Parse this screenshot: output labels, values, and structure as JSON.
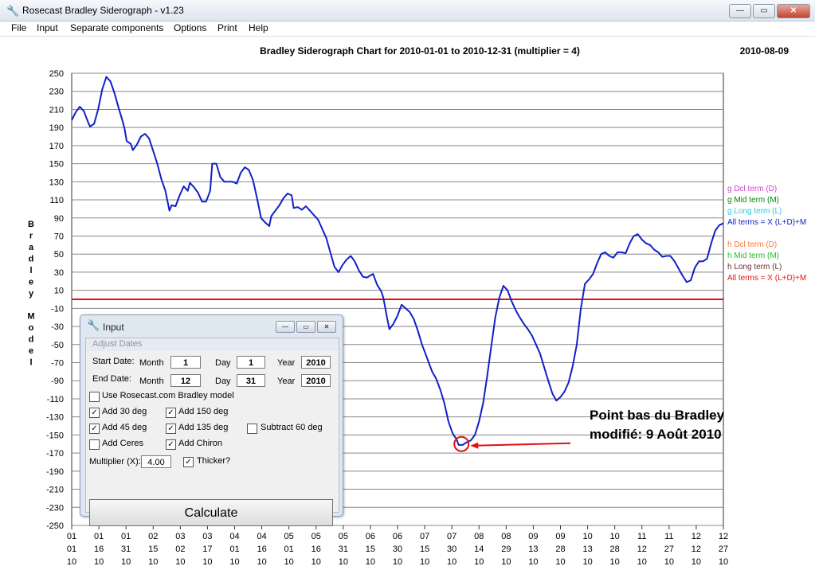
{
  "window": {
    "title": "Rosecast Bradley Siderograph - v1.23",
    "date": "2010-08-09"
  },
  "menu": [
    "File",
    "Input",
    "Separate components",
    "Options",
    "Print",
    "Help"
  ],
  "chart_data": {
    "type": "line",
    "title": "Bradley Siderograph Chart for 2010-01-01 to 2010-12-31 (multiplier = 4)",
    "ylabel": "Bradley Model",
    "ylim": [
      -250,
      250
    ],
    "yticks": [
      250,
      230,
      210,
      190,
      170,
      150,
      130,
      110,
      90,
      70,
      50,
      30,
      10,
      -10,
      -30,
      -50,
      -70,
      -90,
      -110,
      -130,
      -150,
      -170,
      -190,
      -210,
      -230,
      -250
    ],
    "xticks": [
      [
        "01",
        "01",
        "10"
      ],
      [
        "01",
        "16",
        "10"
      ],
      [
        "01",
        "31",
        "10"
      ],
      [
        "02",
        "15",
        "10"
      ],
      [
        "03",
        "02",
        "10"
      ],
      [
        "03",
        "17",
        "10"
      ],
      [
        "04",
        "01",
        "10"
      ],
      [
        "04",
        "16",
        "10"
      ],
      [
        "05",
        "01",
        "10"
      ],
      [
        "05",
        "16",
        "10"
      ],
      [
        "05",
        "31",
        "10"
      ],
      [
        "06",
        "15",
        "10"
      ],
      [
        "06",
        "30",
        "10"
      ],
      [
        "07",
        "15",
        "10"
      ],
      [
        "07",
        "30",
        "10"
      ],
      [
        "08",
        "14",
        "10"
      ],
      [
        "08",
        "29",
        "10"
      ],
      [
        "09",
        "13",
        "10"
      ],
      [
        "09",
        "28",
        "10"
      ],
      [
        "10",
        "13",
        "10"
      ],
      [
        "10",
        "28",
        "10"
      ],
      [
        "11",
        "12",
        "10"
      ],
      [
        "11",
        "27",
        "10"
      ],
      [
        "12",
        "12",
        "10"
      ],
      [
        "12",
        "27",
        "10"
      ]
    ],
    "reference_line": 0,
    "series": [
      {
        "color": "#1020c8",
        "points": [
          [
            0,
            198
          ],
          [
            2,
            207
          ],
          [
            4,
            213
          ],
          [
            6,
            208
          ],
          [
            8,
            196
          ],
          [
            9,
            191
          ],
          [
            11,
            194
          ],
          [
            13,
            210
          ],
          [
            15,
            232
          ],
          [
            17,
            246
          ],
          [
            19,
            241
          ],
          [
            21,
            228
          ],
          [
            23,
            212
          ],
          [
            25,
            197
          ],
          [
            26,
            188
          ],
          [
            27,
            175
          ],
          [
            29,
            172
          ],
          [
            30,
            165
          ],
          [
            32,
            171
          ],
          [
            34,
            180
          ],
          [
            36,
            183
          ],
          [
            38,
            178
          ],
          [
            40,
            164
          ],
          [
            42,
            150
          ],
          [
            44,
            133
          ],
          [
            46,
            120
          ],
          [
            48,
            98
          ],
          [
            49,
            104
          ],
          [
            51,
            103
          ],
          [
            53,
            115
          ],
          [
            55,
            125
          ],
          [
            57,
            120
          ],
          [
            58,
            129
          ],
          [
            60,
            124
          ],
          [
            62,
            118
          ],
          [
            64,
            108
          ],
          [
            66,
            108
          ],
          [
            68,
            120
          ],
          [
            69,
            150
          ],
          [
            71,
            150
          ],
          [
            73,
            135
          ],
          [
            75,
            130
          ],
          [
            77,
            130
          ],
          [
            79,
            130
          ],
          [
            81,
            128
          ],
          [
            83,
            140
          ],
          [
            85,
            146
          ],
          [
            87,
            143
          ],
          [
            89,
            132
          ],
          [
            91,
            112
          ],
          [
            93,
            90
          ],
          [
            95,
            85
          ],
          [
            97,
            81
          ],
          [
            98,
            92
          ],
          [
            100,
            98
          ],
          [
            102,
            104
          ],
          [
            104,
            112
          ],
          [
            106,
            117
          ],
          [
            108,
            115
          ],
          [
            109,
            101
          ],
          [
            111,
            102
          ],
          [
            113,
            99
          ],
          [
            115,
            103
          ],
          [
            117,
            98
          ],
          [
            119,
            93
          ],
          [
            121,
            88
          ],
          [
            123,
            78
          ],
          [
            125,
            68
          ],
          [
            127,
            52
          ],
          [
            129,
            36
          ],
          [
            131,
            30
          ],
          [
            133,
            38
          ],
          [
            135,
            44
          ],
          [
            137,
            48
          ],
          [
            139,
            42
          ],
          [
            141,
            32
          ],
          [
            143,
            25
          ],
          [
            145,
            24
          ],
          [
            147,
            27
          ],
          [
            148,
            28
          ],
          [
            150,
            16
          ],
          [
            152,
            9
          ],
          [
            153,
            2
          ],
          [
            154,
            -10
          ],
          [
            155,
            -22
          ],
          [
            156,
            -33
          ],
          [
            158,
            -27
          ],
          [
            160,
            -18
          ],
          [
            162,
            -6
          ],
          [
            164,
            -10
          ],
          [
            166,
            -14
          ],
          [
            168,
            -22
          ],
          [
            170,
            -35
          ],
          [
            172,
            -50
          ],
          [
            174,
            -62
          ],
          [
            176,
            -74
          ],
          [
            177,
            -80
          ],
          [
            179,
            -88
          ],
          [
            181,
            -100
          ],
          [
            183,
            -115
          ],
          [
            185,
            -135
          ],
          [
            187,
            -148
          ],
          [
            189,
            -155
          ],
          [
            190,
            -161
          ],
          [
            192,
            -161
          ],
          [
            194,
            -158
          ],
          [
            196,
            -156
          ],
          [
            198,
            -150
          ],
          [
            200,
            -135
          ],
          [
            202,
            -115
          ],
          [
            204,
            -85
          ],
          [
            206,
            -52
          ],
          [
            208,
            -20
          ],
          [
            210,
            2
          ],
          [
            212,
            15
          ],
          [
            214,
            10
          ],
          [
            216,
            -2
          ],
          [
            218,
            -12
          ],
          [
            220,
            -20
          ],
          [
            222,
            -27
          ],
          [
            224,
            -33
          ],
          [
            226,
            -40
          ],
          [
            228,
            -50
          ],
          [
            230,
            -60
          ],
          [
            232,
            -75
          ],
          [
            234,
            -90
          ],
          [
            236,
            -104
          ],
          [
            238,
            -112
          ],
          [
            240,
            -108
          ],
          [
            242,
            -102
          ],
          [
            244,
            -92
          ],
          [
            246,
            -74
          ],
          [
            248,
            -50
          ],
          [
            250,
            -10
          ],
          [
            252,
            17
          ],
          [
            254,
            22
          ],
          [
            256,
            28
          ],
          [
            258,
            40
          ],
          [
            260,
            50
          ],
          [
            262,
            52
          ],
          [
            264,
            48
          ],
          [
            266,
            46
          ],
          [
            268,
            52
          ],
          [
            270,
            52
          ],
          [
            272,
            51
          ],
          [
            274,
            62
          ],
          [
            276,
            70
          ],
          [
            278,
            72
          ],
          [
            280,
            66
          ],
          [
            282,
            62
          ],
          [
            284,
            60
          ],
          [
            286,
            55
          ],
          [
            288,
            52
          ],
          [
            290,
            47
          ],
          [
            292,
            48
          ],
          [
            294,
            48
          ],
          [
            296,
            42
          ],
          [
            298,
            34
          ],
          [
            300,
            26
          ],
          [
            302,
            19
          ],
          [
            304,
            21
          ],
          [
            306,
            35
          ],
          [
            308,
            42
          ],
          [
            310,
            42
          ],
          [
            312,
            45
          ],
          [
            314,
            62
          ],
          [
            316,
            76
          ],
          [
            318,
            82
          ],
          [
            320,
            84
          ]
        ]
      }
    ],
    "legend": [
      {
        "label": "g Dcl term (D)",
        "color": "#cc44cc"
      },
      {
        "label": "g Mid term (M)",
        "color": "#008800"
      },
      {
        "label": "g Long term (L)",
        "color": "#33c6d6"
      },
      {
        "label": "All terms = X (L+D)+M",
        "color": "#1020c8"
      },
      {
        "label": "h Dcl term (D)",
        "color": "#ff7733"
      },
      {
        "label": "h Mid term (M)",
        "color": "#22bb22"
      },
      {
        "label": "h Long term (L)",
        "color": "#663333"
      },
      {
        "label": "All terms = X (L+D)+M",
        "color": "#ee1111"
      }
    ],
    "annotation": {
      "lines": [
        "Point bas du Bradley",
        "modifié:  9 Août 2010"
      ],
      "x": 191,
      "y": -160
    }
  },
  "dialog": {
    "title": "Input",
    "section": "Adjust Dates",
    "start_label": "Start Date:",
    "end_label": "End Date:",
    "month_label": "Month",
    "day_label": "Day",
    "year_label": "Year",
    "start": {
      "month": "1",
      "day": "1",
      "year": "2010"
    },
    "end": {
      "month": "12",
      "day": "31",
      "year": "2010"
    },
    "options": {
      "use_rosecast": {
        "label": "Use Rosecast.com Bradley model",
        "checked": false
      },
      "add30": {
        "label": "Add 30 deg",
        "checked": true
      },
      "add150": {
        "label": "Add 150 deg",
        "checked": true
      },
      "add45": {
        "label": "Add 45 deg",
        "checked": true
      },
      "add135": {
        "label": "Add 135 deg",
        "checked": true
      },
      "sub60": {
        "label": "Subtract 60 deg",
        "checked": false
      },
      "ceres": {
        "label": "Add Ceres",
        "checked": false
      },
      "chiron": {
        "label": "Add Chiron",
        "checked": true
      },
      "thicker": {
        "label": "Thicker?",
        "checked": true
      }
    },
    "multiplier_label": "Multiplier (X):",
    "multiplier": "4.00",
    "calculate_label": "Calculate"
  }
}
